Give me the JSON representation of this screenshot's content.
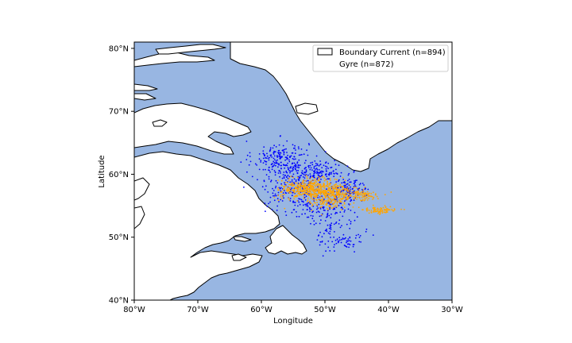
{
  "chart_data": {
    "type": "scatter",
    "map": true,
    "xlabel": "Longitude",
    "ylabel": "Latitude",
    "xlim": [
      -80,
      -30
    ],
    "ylim": [
      40,
      81
    ],
    "x_ticks": [
      -80,
      -70,
      -60,
      -50,
      -40,
      -30
    ],
    "x_tick_labels": [
      "80°W",
      "70°W",
      "60°W",
      "50°W",
      "40°W",
      "30°W"
    ],
    "y_ticks": [
      40,
      50,
      60,
      70,
      80
    ],
    "y_tick_labels": [
      "40°N",
      "50°N",
      "60°N",
      "70°N",
      "80°N"
    ],
    "grid": false,
    "legend": {
      "placement": "top-right"
    },
    "colors": {
      "ocean": "#98b6e2",
      "land": "#ffffff",
      "coast": "#000000"
    },
    "series": [
      {
        "name": "Boundary Current (n=894)",
        "color": "#0000ff",
        "n": 894,
        "approx_region": "Labrador Sea rim: 61W-44W, 47N-65N",
        "clusters": [
          {
            "lon": -57,
            "lat": 62.5,
            "sx": 2.2,
            "sy": 1.4,
            "w": 0.22
          },
          {
            "lon": -51,
            "lat": 60.2,
            "sx": 2.2,
            "sy": 1.0,
            "w": 0.18
          },
          {
            "lon": -55.5,
            "lat": 58.0,
            "sx": 2.5,
            "sy": 2.2,
            "w": 0.22
          },
          {
            "lon": -50,
            "lat": 55.0,
            "sx": 2.2,
            "sy": 1.5,
            "w": 0.16
          },
          {
            "lon": -47.5,
            "lat": 50.0,
            "sx": 1.8,
            "sy": 1.2,
            "w": 0.1
          },
          {
            "lon": -46,
            "lat": 57.5,
            "sx": 1.5,
            "sy": 1.0,
            "w": 0.12
          }
        ]
      },
      {
        "name": "Gyre (n=872)",
        "color": "#ffa500",
        "n": 872,
        "approx_region": "Central Labrador Sea: 56W-39W, 53N-59N",
        "clusters": [
          {
            "lon": -52.5,
            "lat": 57.7,
            "sx": 2.2,
            "sy": 0.8,
            "w": 0.45
          },
          {
            "lon": -48.5,
            "lat": 56.8,
            "sx": 2.0,
            "sy": 0.8,
            "w": 0.3
          },
          {
            "lon": -44,
            "lat": 56.6,
            "sx": 1.4,
            "sy": 0.4,
            "w": 0.1
          },
          {
            "lon": -41.5,
            "lat": 54.3,
            "sx": 1.5,
            "sy": 0.3,
            "w": 0.1
          },
          {
            "lon": -50,
            "lat": 55.3,
            "sx": 1.5,
            "sy": 0.8,
            "w": 0.05
          }
        ]
      }
    ]
  },
  "legend": {
    "entries": [
      {
        "label": "Boundary Current (n=894)"
      },
      {
        "label": "Gyre (n=872)"
      }
    ]
  }
}
